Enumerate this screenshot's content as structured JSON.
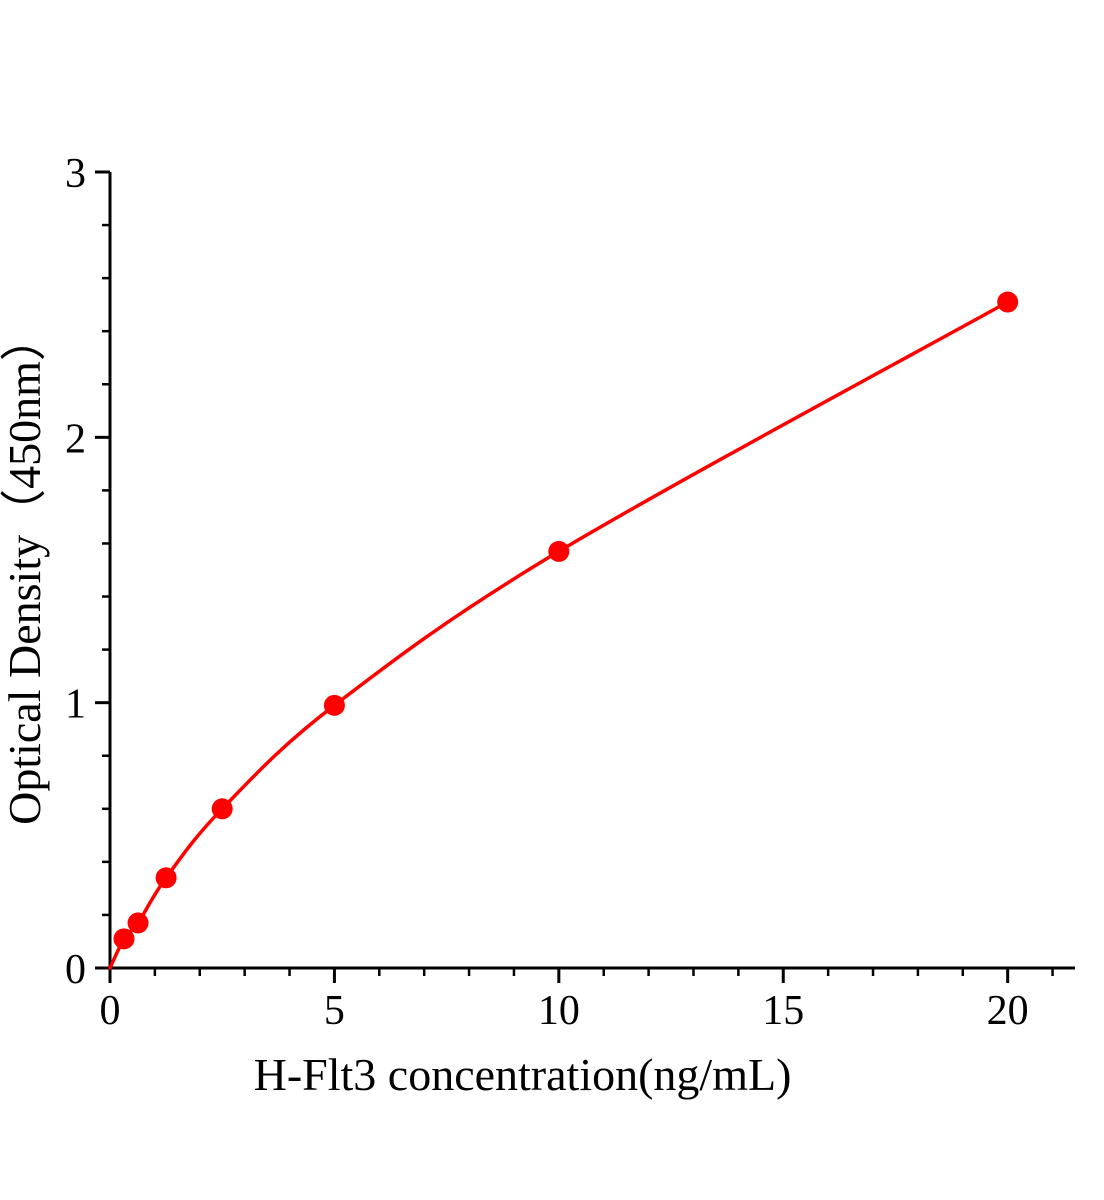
{
  "chart_data": {
    "type": "line",
    "title": "",
    "xlabel": "H-Flt3 concentration(ng/mL)",
    "ylabel": "Optical Density（450nm）",
    "x": [
      0.3125,
      0.625,
      1.25,
      2.5,
      5,
      10,
      20
    ],
    "y": [
      0.11,
      0.17,
      0.34,
      0.6,
      0.99,
      1.57,
      2.51
    ],
    "curve_start": {
      "x": 0,
      "y": 0
    },
    "xlim": [
      0,
      21.5
    ],
    "ylim": [
      0,
      3
    ],
    "x_ticks": [
      0,
      5,
      10,
      15,
      20
    ],
    "y_ticks": [
      0,
      1,
      2,
      3
    ],
    "x_minor_step": 1,
    "y_minor_step": 0.2,
    "grid": false,
    "legend": "none",
    "line_color": "#ff0000",
    "marker_color": "#ff0000",
    "axis_color": "#000000"
  }
}
